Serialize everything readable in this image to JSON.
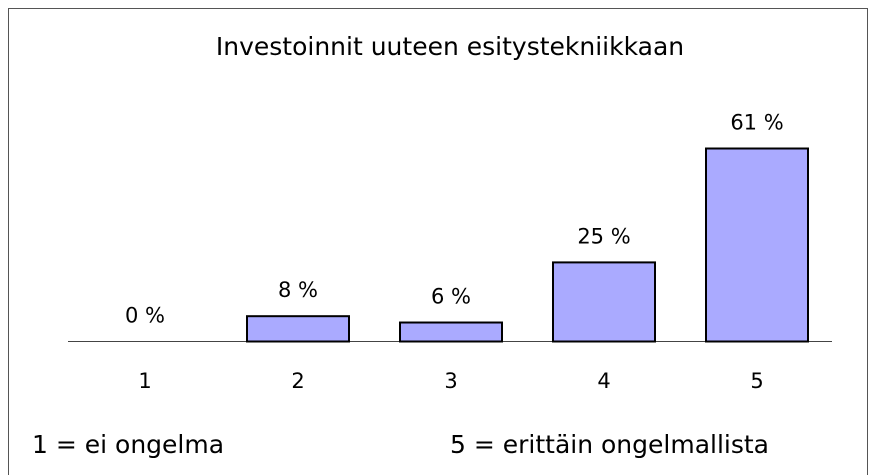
{
  "chart_data": {
    "type": "bar",
    "title": "Investoinnit uuteen esitystekniikkaan",
    "categories": [
      "1",
      "2",
      "3",
      "4",
      "5"
    ],
    "values": [
      0,
      8,
      6,
      25,
      61
    ],
    "value_labels": [
      "0 %",
      "8 %",
      "6 %",
      "25 %",
      "61 %"
    ],
    "color": "#aaaaff",
    "annotations": [
      "1 = ei ongelma",
      "5 = erittäin ongelmallista"
    ]
  }
}
